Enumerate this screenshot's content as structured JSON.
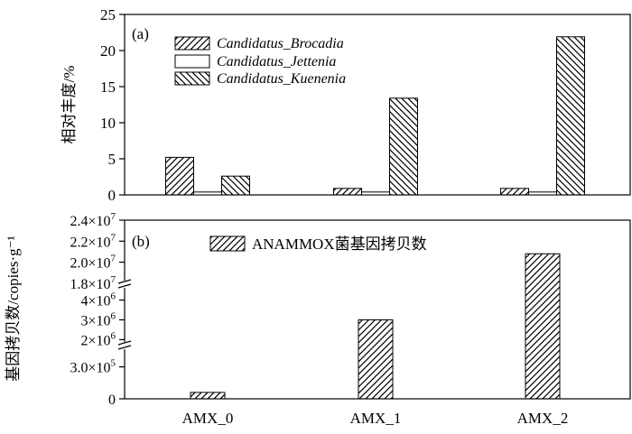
{
  "chart_data": [
    {
      "type": "bar",
      "panel_label": "(a)",
      "ylabel": "相对丰度/%",
      "ylim": [
        0,
        25
      ],
      "yticks": [
        0,
        5,
        10,
        15,
        20,
        25
      ],
      "ytick_labels": [
        "0",
        "5",
        "10",
        "15",
        "20",
        "25"
      ],
      "categories": [
        "AMX_0",
        "AMX_1",
        "AMX_2"
      ],
      "legend_position": "top-left",
      "series": [
        {
          "name": "Candidatus_Brocadia",
          "pattern": "diag-up",
          "values": [
            5.2,
            0.9,
            0.9
          ]
        },
        {
          "name": "Candidatus_Jettenia",
          "pattern": "none",
          "values": [
            0.4,
            0.4,
            0.4
          ]
        },
        {
          "name": "Candidatus_Kuenenia",
          "pattern": "diag-down",
          "values": [
            2.6,
            13.4,
            21.9
          ]
        }
      ]
    },
    {
      "type": "bar",
      "panel_label": "(b)",
      "ylabel": "基因拷贝数/copies·g⁻¹",
      "categories": [
        "AMX_0",
        "AMX_1",
        "AMX_2"
      ],
      "xtick_labels": [
        "AMX_0",
        "AMX_1",
        "AMX_2"
      ],
      "legend_position": "top-left",
      "axis_breaks": true,
      "series": [
        {
          "name": "ANAMMOX菌基因拷贝数",
          "pattern": "diag-up",
          "values": [
            60000,
            3000000,
            20800000
          ]
        }
      ],
      "segments": [
        {
          "range": [
            0,
            500000
          ],
          "ticks": [
            {
              "value": 0,
              "label": "0"
            },
            {
              "value": 300000,
              "label": "3.0×10",
              "exp": "5"
            }
          ]
        },
        {
          "range": [
            1700000,
            4800000
          ],
          "ticks": [
            {
              "value": 2000000,
              "label": "2×10",
              "exp": "6"
            },
            {
              "value": 3000000,
              "label": "3×10",
              "exp": "6"
            },
            {
              "value": 4000000,
              "label": "4×10",
              "exp": "6"
            }
          ]
        },
        {
          "range": [
            17900000,
            24000000
          ],
          "ticks": [
            {
              "value": 18000000,
              "label": "1.8×10",
              "exp": "7"
            },
            {
              "value": 20000000,
              "label": "2.0×10",
              "exp": "7"
            },
            {
              "value": 22000000,
              "label": "2.2×10",
              "exp": "7"
            },
            {
              "value": 24000000,
              "label": "2.4×10",
              "exp": "7"
            }
          ]
        }
      ]
    }
  ]
}
